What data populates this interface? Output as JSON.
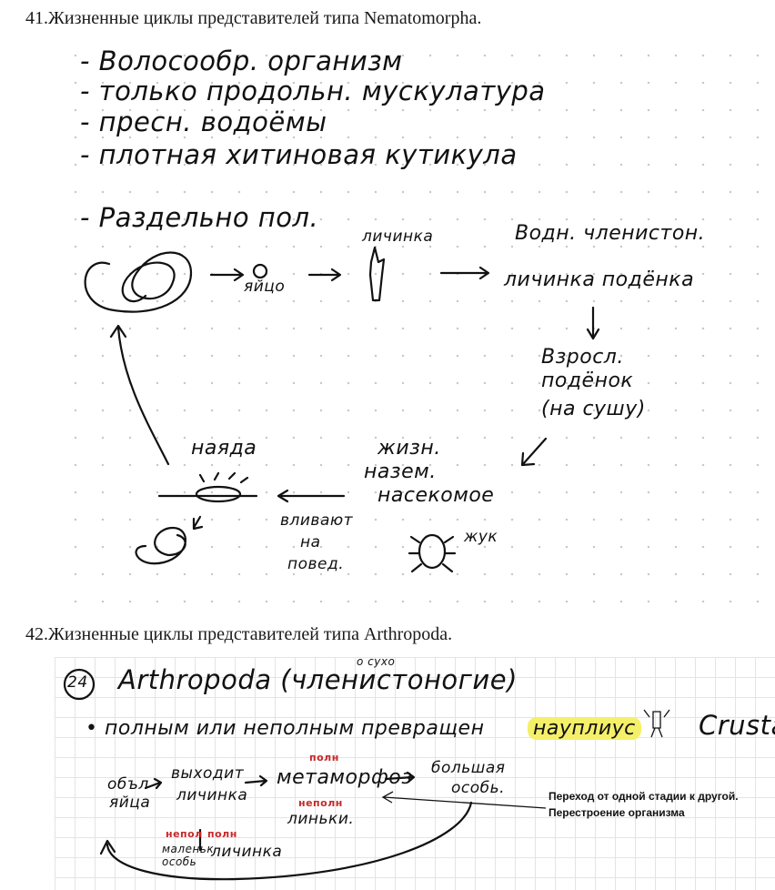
{
  "section41": {
    "title": "41.Жизненные циклы представителей типа Nematomorpha.",
    "notes": {
      "line1": "- Волосообр. организм",
      "line2": "- только продольн. мускулатура",
      "line3": "- пресн. водоёмы",
      "line4": "- плотная хитиновая кутикула",
      "line5": "- Раздельно пол."
    },
    "cycle": {
      "egg": "яйцо",
      "larva": "личинка",
      "host_top": "Водн. членистон.",
      "host_larva": "личинка подёнка",
      "adult_1": "Взросл.",
      "adult_2": "подёнок",
      "adult_3": "(на сушу)",
      "insect_1": "жизн.",
      "insect_2": "назем.",
      "insect_3": "насекомое",
      "beetle": "жук",
      "pushes_1": "вливают",
      "pushes_2": "на",
      "pushes_3": "повед.",
      "naiad": "наяда"
    }
  },
  "section42": {
    "title": "42.Жизненные циклы представителей типа Arthropoda.",
    "number": "24",
    "header": "Arthropoda (членистоногие)",
    "header_small": "о сухо",
    "metamorphosis": "• полным или неполным превращен",
    "nauplius": "науплиус",
    "crustacea": "Crusta",
    "flow": {
      "egg_1": "объл",
      "egg_2": "яйца",
      "exit_1": "выходит",
      "exit_2": "личинка",
      "full_red": "полн",
      "meta": "метаморфоз",
      "big_1": "большая",
      "big_2": "особь.",
      "incomplete_red": "неполн",
      "molts": "линьки.",
      "incomp_red_2": "непол",
      "full_red_2": "полн",
      "small_1": "маленьк",
      "small_2": "особь",
      "larva2": "личинка"
    },
    "annotation_1": "Переход от одной стадии к другой.",
    "annotation_2": "Перестроение организма"
  }
}
